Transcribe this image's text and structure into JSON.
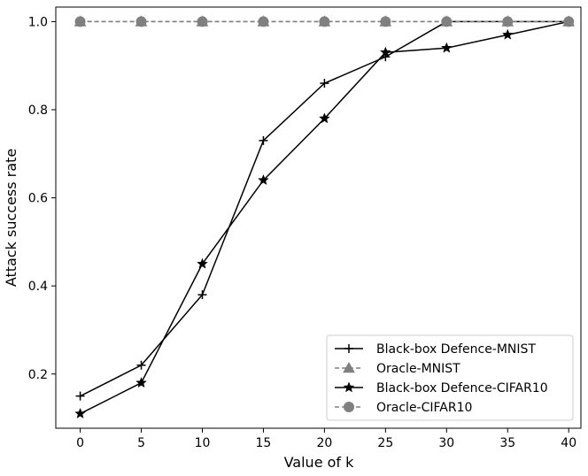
{
  "chart_data": {
    "type": "line",
    "title": "",
    "xlabel": "Value of k",
    "ylabel": "Attack success rate",
    "xlim": [
      -2,
      41
    ],
    "ylim": [
      0.077,
      1.033
    ],
    "xticks": [
      0,
      5,
      10,
      15,
      20,
      25,
      30,
      35,
      40
    ],
    "yticks": [
      0.2,
      0.4,
      0.6,
      0.8,
      1.0
    ],
    "xtick_labels": [
      "0",
      "5",
      "10",
      "15",
      "20",
      "25",
      "30",
      "35",
      "40"
    ],
    "ytick_labels": [
      "0.2",
      "0.4",
      "0.6",
      "0.8",
      "1.0"
    ],
    "grid": false,
    "legend_position": "bottom-right",
    "x": [
      0,
      5,
      10,
      15,
      20,
      25,
      30,
      35,
      40
    ],
    "series": [
      {
        "name": "Black-box Defence-MNIST",
        "values": [
          0.15,
          0.22,
          0.38,
          0.73,
          0.86,
          0.92,
          1.0,
          1.0,
          1.0
        ],
        "color": "#000000",
        "marker": "plus",
        "dash": "solid"
      },
      {
        "name": "Oracle-MNIST",
        "values": [
          1.0,
          1.0,
          1.0,
          1.0,
          1.0,
          1.0,
          1.0,
          1.0,
          1.0
        ],
        "color": "#808080",
        "marker": "triangle",
        "dash": "dashed"
      },
      {
        "name": "Black-box Defence-CIFAR10",
        "values": [
          0.11,
          0.18,
          0.45,
          0.64,
          0.78,
          0.93,
          0.94,
          0.97,
          1.0
        ],
        "color": "#000000",
        "marker": "star",
        "dash": "solid"
      },
      {
        "name": "Oracle-CIFAR10",
        "values": [
          1.0,
          1.0,
          1.0,
          1.0,
          1.0,
          1.0,
          1.0,
          1.0,
          1.0
        ],
        "color": "#808080",
        "marker": "circle",
        "dash": "dashed"
      }
    ]
  }
}
